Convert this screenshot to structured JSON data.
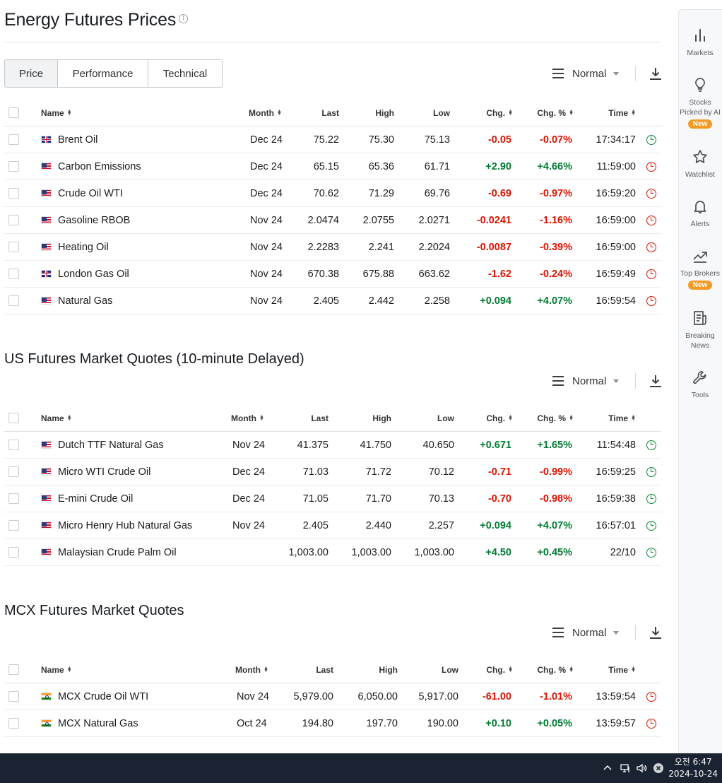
{
  "energy": {
    "title": "Energy Futures Prices",
    "tabs": [
      {
        "label": "Price",
        "active": true
      },
      {
        "label": "Performance",
        "active": false
      },
      {
        "label": "Technical",
        "active": false
      }
    ],
    "view_label": "Normal",
    "headers": {
      "name": "Name",
      "month": "Month",
      "last": "Last",
      "high": "High",
      "low": "Low",
      "chg": "Chg.",
      "chg_pct": "Chg. %",
      "time": "Time"
    },
    "rows": [
      {
        "flag": "gb",
        "name": "Brent Oil",
        "month": "Dec 24",
        "last": "75.22",
        "high": "75.30",
        "low": "75.13",
        "chg": "-0.05",
        "chg_pct": "-0.07%",
        "time": "17:34:17",
        "dir": "dn",
        "status": "open"
      },
      {
        "flag": "us",
        "name": "Carbon Emissions",
        "month": "Dec 24",
        "last": "65.15",
        "high": "65.36",
        "low": "61.71",
        "chg": "+2.90",
        "chg_pct": "+4.66%",
        "time": "11:59:00",
        "dir": "up",
        "status": "closed"
      },
      {
        "flag": "us",
        "name": "Crude Oil WTI",
        "month": "Dec 24",
        "last": "70.62",
        "high": "71.29",
        "low": "69.76",
        "chg": "-0.69",
        "chg_pct": "-0.97%",
        "time": "16:59:20",
        "dir": "dn",
        "status": "closed"
      },
      {
        "flag": "us",
        "name": "Gasoline RBOB",
        "month": "Nov 24",
        "last": "2.0474",
        "high": "2.0755",
        "low": "2.0271",
        "chg": "-0.0241",
        "chg_pct": "-1.16%",
        "time": "16:59:00",
        "dir": "dn",
        "status": "closed"
      },
      {
        "flag": "us",
        "name": "Heating Oil",
        "month": "Nov 24",
        "last": "2.2283",
        "high": "2.241",
        "low": "2.2024",
        "chg": "-0.0087",
        "chg_pct": "-0.39%",
        "time": "16:59:00",
        "dir": "dn",
        "status": "closed"
      },
      {
        "flag": "gb",
        "name": "London Gas Oil",
        "month": "Nov 24",
        "last": "670.38",
        "high": "675.88",
        "low": "663.62",
        "chg": "-1.62",
        "chg_pct": "-0.24%",
        "time": "16:59:49",
        "dir": "dn",
        "status": "closed"
      },
      {
        "flag": "us",
        "name": "Natural Gas",
        "month": "Nov 24",
        "last": "2.405",
        "high": "2.442",
        "low": "2.258",
        "chg": "+0.094",
        "chg_pct": "+4.07%",
        "time": "16:59:54",
        "dir": "up",
        "status": "closed"
      }
    ]
  },
  "us": {
    "title": "US Futures Market Quotes (10-minute Delayed)",
    "view_label": "Normal",
    "headers": {
      "name": "Name",
      "month": "Month",
      "last": "Last",
      "high": "High",
      "low": "Low",
      "chg": "Chg.",
      "chg_pct": "Chg. %",
      "time": "Time"
    },
    "rows": [
      {
        "flag": "us",
        "name": "Dutch TTF Natural Gas",
        "month": "Nov 24",
        "last": "41.375",
        "high": "41.750",
        "low": "40.650",
        "chg": "+0.671",
        "chg_pct": "+1.65%",
        "time": "11:54:48",
        "dir": "up",
        "status": "open"
      },
      {
        "flag": "us",
        "name": "Micro WTI Crude Oil",
        "month": "Dec 24",
        "last": "71.03",
        "high": "71.72",
        "low": "70.12",
        "chg": "-0.71",
        "chg_pct": "-0.99%",
        "time": "16:59:25",
        "dir": "dn",
        "status": "open"
      },
      {
        "flag": "us",
        "name": "E-mini Crude Oil",
        "month": "Dec 24",
        "last": "71.05",
        "high": "71.70",
        "low": "70.13",
        "chg": "-0.70",
        "chg_pct": "-0.98%",
        "time": "16:59:38",
        "dir": "dn",
        "status": "open"
      },
      {
        "flag": "us",
        "name": "Micro Henry Hub Natural Gas",
        "month": "Nov 24",
        "last": "2.405",
        "high": "2.440",
        "low": "2.257",
        "chg": "+0.094",
        "chg_pct": "+4.07%",
        "time": "16:57:01",
        "dir": "up",
        "status": "open"
      },
      {
        "flag": "us",
        "name": "Malaysian Crude Palm Oil",
        "month": "",
        "last": "1,003.00",
        "high": "1,003.00",
        "low": "1,003.00",
        "chg": "+4.50",
        "chg_pct": "+0.45%",
        "time": "22/10",
        "dir": "up",
        "status": "open"
      }
    ]
  },
  "mcx": {
    "title": "MCX Futures Market Quotes",
    "view_label": "Normal",
    "headers": {
      "name": "Name",
      "month": "Month",
      "last": "Last",
      "high": "High",
      "low": "Low",
      "chg": "Chg.",
      "chg_pct": "Chg. %",
      "time": "Time"
    },
    "rows": [
      {
        "flag": "in",
        "name": "MCX Crude Oil WTI",
        "month": "Nov 24",
        "last": "5,979.00",
        "high": "6,050.00",
        "low": "5,917.00",
        "chg": "-61.00",
        "chg_pct": "-1.01%",
        "time": "13:59:54",
        "dir": "dn",
        "status": "closed"
      },
      {
        "flag": "in",
        "name": "MCX Natural Gas",
        "month": "Oct 24",
        "last": "194.80",
        "high": "197.70",
        "low": "190.00",
        "chg": "+0.10",
        "chg_pct": "+0.05%",
        "time": "13:59:57",
        "dir": "up",
        "status": "closed"
      }
    ]
  },
  "rail": {
    "items": [
      {
        "id": "markets",
        "label": "Markets",
        "icon": "bar-chart-icon"
      },
      {
        "id": "stocks-ai",
        "label": "Stocks\nPicked by AI",
        "icon": "lightbulb-icon",
        "badge": "New"
      },
      {
        "id": "watchlist",
        "label": "Watchlist",
        "icon": "star-icon"
      },
      {
        "id": "alerts",
        "label": "Alerts",
        "icon": "bell-icon"
      },
      {
        "id": "top-brokers",
        "label": "Top Brokers",
        "icon": "trend-up-icon",
        "badge": "New"
      },
      {
        "id": "breaking-news",
        "label": "Breaking\nNews",
        "icon": "news-icon"
      },
      {
        "id": "tools",
        "label": "Tools",
        "icon": "wrench-icon"
      }
    ]
  },
  "taskbar": {
    "time": "오전 6:47",
    "date": "2024-10-24"
  },
  "colors": {
    "up": "#007c32",
    "down": "#d91400",
    "open_clock": "#0a8a3a",
    "closed_clock": "#d91400",
    "badge": "#f59a23",
    "taskbar": "#1a2331"
  }
}
